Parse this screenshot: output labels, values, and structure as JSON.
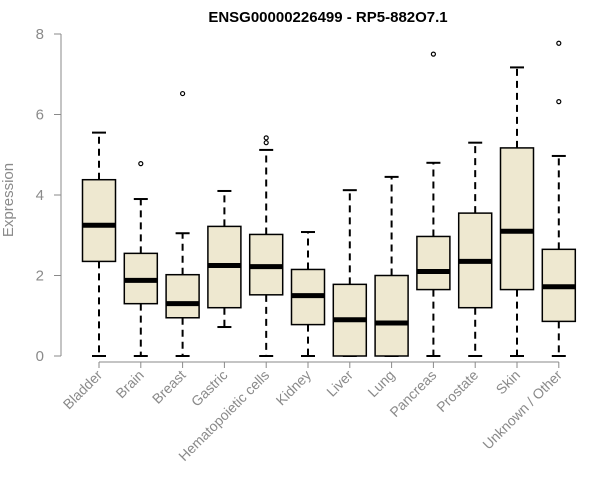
{
  "chart_data": {
    "type": "boxplot",
    "title": "ENSG00000226499 - RP5-882O7.1",
    "ylabel": "Expression",
    "xlabel": "",
    "ylim": [
      0,
      8
    ],
    "yticks": [
      0,
      2,
      4,
      6,
      8
    ],
    "grid": false,
    "box_fill": "#eee8d0",
    "line_color": "#000000",
    "categories": [
      "Bladder",
      "Brain",
      "Breast",
      "Gastric",
      "Hematopoietic cells",
      "Kidney",
      "Liver",
      "Lung",
      "Pancreas",
      "Prostate",
      "Skin",
      "Unknown / Other"
    ],
    "boxes": [
      {
        "whisker_low": 0,
        "q1": 2.35,
        "median": 3.25,
        "q3": 4.38,
        "whisker_high": 5.55,
        "outliers": []
      },
      {
        "whisker_low": 0,
        "q1": 1.3,
        "median": 1.88,
        "q3": 2.55,
        "whisker_high": 3.9,
        "outliers": [
          4.78
        ]
      },
      {
        "whisker_low": 0,
        "q1": 0.95,
        "median": 1.3,
        "q3": 2.02,
        "whisker_high": 3.05,
        "outliers": [
          6.52
        ]
      },
      {
        "whisker_low": 0.72,
        "q1": 1.2,
        "median": 2.25,
        "q3": 3.22,
        "whisker_high": 4.1,
        "outliers": []
      },
      {
        "whisker_low": 0,
        "q1": 1.52,
        "median": 2.22,
        "q3": 3.02,
        "whisker_high": 5.12,
        "outliers": [
          5.3,
          5.42
        ]
      },
      {
        "whisker_low": 0,
        "q1": 0.78,
        "median": 1.5,
        "q3": 2.15,
        "whisker_high": 3.08,
        "outliers": []
      },
      {
        "whisker_low": 0,
        "q1": 0,
        "median": 0.9,
        "q3": 1.78,
        "whisker_high": 4.12,
        "outliers": []
      },
      {
        "whisker_low": 0,
        "q1": 0,
        "median": 0.82,
        "q3": 2.0,
        "whisker_high": 4.45,
        "outliers": []
      },
      {
        "whisker_low": 0,
        "q1": 1.65,
        "median": 2.1,
        "q3": 2.97,
        "whisker_high": 4.8,
        "outliers": [
          7.5
        ]
      },
      {
        "whisker_low": 0,
        "q1": 1.2,
        "median": 2.35,
        "q3": 3.55,
        "whisker_high": 5.3,
        "outliers": []
      },
      {
        "whisker_low": 0,
        "q1": 1.65,
        "median": 3.1,
        "q3": 5.17,
        "whisker_high": 7.17,
        "outliers": []
      },
      {
        "whisker_low": 0,
        "q1": 0.86,
        "median": 1.72,
        "q3": 2.65,
        "whisker_high": 4.97,
        "outliers": [
          6.32,
          7.77
        ]
      }
    ]
  }
}
